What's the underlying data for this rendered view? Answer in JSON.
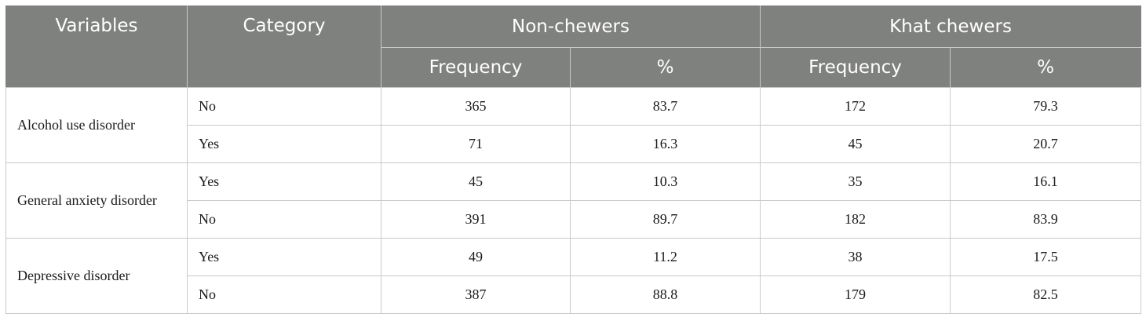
{
  "header": {
    "variables": "Variables",
    "category": "Category",
    "group_non_chewers": "Non-chewers",
    "group_khat_chewers": "Khat chewers",
    "frequency": "Frequency",
    "percent": "%"
  },
  "rows": [
    {
      "variable": "Alcohol use disorder",
      "items": [
        {
          "category": "No",
          "non_freq": "365",
          "non_pct": "83.7",
          "khat_freq": "172",
          "khat_pct": "79.3"
        },
        {
          "category": "Yes",
          "non_freq": "71",
          "non_pct": "16.3",
          "khat_freq": "45",
          "khat_pct": "20.7"
        }
      ]
    },
    {
      "variable": "General anxiety disorder",
      "items": [
        {
          "category": "Yes",
          "non_freq": "45",
          "non_pct": "10.3",
          "khat_freq": "35",
          "khat_pct": "16.1"
        },
        {
          "category": "No",
          "non_freq": "391",
          "non_pct": "89.7",
          "khat_freq": "182",
          "khat_pct": "83.9"
        }
      ]
    },
    {
      "variable": "Depressive disorder",
      "items": [
        {
          "category": "Yes",
          "non_freq": "49",
          "non_pct": "11.2",
          "khat_freq": "38",
          "khat_pct": "17.5"
        },
        {
          "category": "No",
          "non_freq": "387",
          "non_pct": "88.8",
          "khat_freq": "179",
          "khat_pct": "82.5"
        }
      ]
    }
  ],
  "colors": {
    "header_bg": "#7f817e",
    "header_text": "#ffffff",
    "grid_line": "#c9cac8",
    "body_text": "#1a1a1a"
  }
}
